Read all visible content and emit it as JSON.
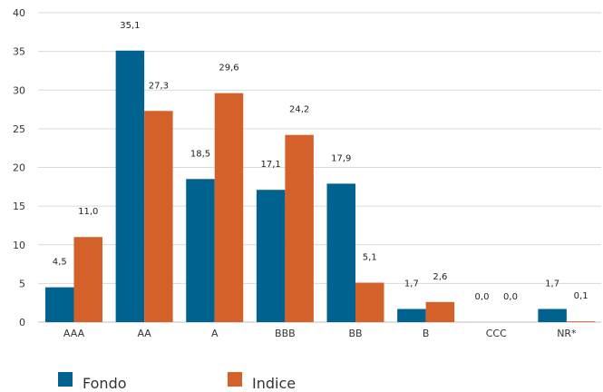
{
  "chart_data": {
    "type": "bar",
    "categories": [
      "AAA",
      "AA",
      "A",
      "BBB",
      "BB",
      "B",
      "CCC",
      "NR*"
    ],
    "series": [
      {
        "name": "Fondo",
        "color": "#00628f",
        "values": [
          4.5,
          35.1,
          18.5,
          17.1,
          17.9,
          1.7,
          0.0,
          1.7
        ],
        "labels": [
          "4,5",
          "35,1",
          "18,5",
          "17,1",
          "17,9",
          "1,7",
          "0,0",
          "1,7"
        ]
      },
      {
        "name": "Indice",
        "color": "#d4612a",
        "values": [
          11.0,
          27.3,
          29.6,
          24.2,
          5.1,
          2.6,
          0.0,
          0.1
        ],
        "labels": [
          "11,0",
          "27,3",
          "29,6",
          "24,2",
          "5,1",
          "2,6",
          "0,0",
          "0,1"
        ]
      }
    ],
    "ylim": [
      0,
      40
    ],
    "yticks": [
      "0",
      "5",
      "10",
      "15",
      "20",
      "25",
      "30",
      "35",
      "40"
    ],
    "grid": true,
    "legend_position": "bottom-left",
    "title": "",
    "xlabel": "",
    "ylabel": ""
  }
}
